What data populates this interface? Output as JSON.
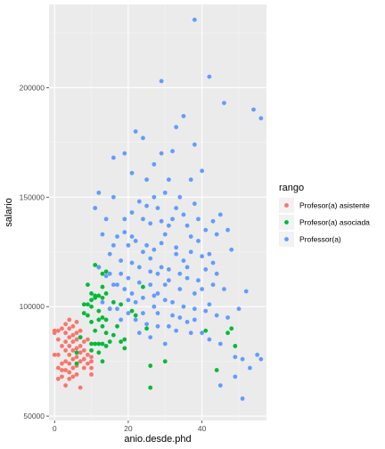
{
  "chart_data": {
    "type": "scatter",
    "title": "",
    "xlabel": "anio.desde.phd",
    "ylabel": "salario",
    "xlim": [
      -1.5,
      57.5
    ],
    "ylim": [
      48000,
      238000
    ],
    "x_ticks": [
      0,
      20,
      40
    ],
    "y_ticks": [
      50000,
      100000,
      150000,
      200000
    ],
    "y_tick_labels": [
      "50000",
      "100000",
      "150000",
      "200000"
    ],
    "grid": true,
    "legend": {
      "title": "rango",
      "position": "right"
    },
    "series": [
      {
        "name": "Profesor(a) asistente",
        "color": "#F8766D",
        "points": [
          [
            0,
            89000
          ],
          [
            0,
            88000
          ],
          [
            0,
            78000
          ],
          [
            1,
            89000
          ],
          [
            1,
            85000
          ],
          [
            1,
            78000
          ],
          [
            1,
            72000
          ],
          [
            1,
            67000
          ],
          [
            2,
            90000
          ],
          [
            2,
            82000
          ],
          [
            2,
            74000
          ],
          [
            2,
            71000
          ],
          [
            2,
            68000
          ],
          [
            3,
            92000
          ],
          [
            3,
            88000
          ],
          [
            3,
            84000
          ],
          [
            3,
            80000
          ],
          [
            3,
            75000
          ],
          [
            3,
            71000
          ],
          [
            3,
            64000
          ],
          [
            4,
            94000
          ],
          [
            4,
            90000
          ],
          [
            4,
            86000
          ],
          [
            4,
            82000
          ],
          [
            4,
            78000
          ],
          [
            4,
            74000
          ],
          [
            4,
            70000
          ],
          [
            4,
            67000
          ],
          [
            5,
            91000
          ],
          [
            5,
            87000
          ],
          [
            5,
            84000
          ],
          [
            5,
            80000
          ],
          [
            5,
            76000
          ],
          [
            5,
            72000
          ],
          [
            5,
            68000
          ],
          [
            6,
            93000
          ],
          [
            6,
            88000
          ],
          [
            6,
            85000
          ],
          [
            6,
            81000
          ],
          [
            6,
            77000
          ],
          [
            6,
            73000
          ],
          [
            6,
            69000
          ],
          [
            7,
            89000
          ],
          [
            7,
            86000
          ],
          [
            7,
            82000
          ],
          [
            7,
            79000
          ],
          [
            7,
            75000
          ],
          [
            7,
            63000
          ],
          [
            8,
            84000
          ],
          [
            8,
            80000
          ],
          [
            8,
            76000
          ],
          [
            8,
            72000
          ],
          [
            9,
            85000
          ],
          [
            9,
            78000
          ],
          [
            9,
            74000
          ],
          [
            10,
            77000
          ],
          [
            10,
            75000
          ],
          [
            10,
            72000
          ],
          [
            10,
            69000
          ]
        ]
      },
      {
        "name": "Profesor(a) asociada",
        "color": "#00BA38",
        "points": [
          [
            6,
            79000
          ],
          [
            6,
            74000
          ],
          [
            7,
            86000
          ],
          [
            8,
            101000
          ],
          [
            8,
            97000
          ],
          [
            9,
            110000
          ],
          [
            9,
            101000
          ],
          [
            9,
            96000
          ],
          [
            10,
            106000
          ],
          [
            10,
            103000
          ],
          [
            10,
            100000
          ],
          [
            10,
            93000
          ],
          [
            10,
            83000
          ],
          [
            10,
            80000
          ],
          [
            11,
            119000
          ],
          [
            11,
            105000
          ],
          [
            11,
            104000
          ],
          [
            11,
            89000
          ],
          [
            11,
            83000
          ],
          [
            12,
            118000
          ],
          [
            12,
            105000
          ],
          [
            12,
            98000
          ],
          [
            12,
            94000
          ],
          [
            12,
            83000
          ],
          [
            12,
            79000
          ],
          [
            13,
            115000
          ],
          [
            13,
            109000
          ],
          [
            13,
            104000
          ],
          [
            13,
            95000
          ],
          [
            13,
            91000
          ],
          [
            13,
            83000
          ],
          [
            13,
            75000
          ],
          [
            14,
            116000
          ],
          [
            14,
            106000
          ],
          [
            14,
            94000
          ],
          [
            14,
            88000
          ],
          [
            14,
            82000
          ],
          [
            15,
            99000
          ],
          [
            15,
            84000
          ],
          [
            16,
            102000
          ],
          [
            16,
            87000
          ],
          [
            17,
            91000
          ],
          [
            18,
            101000
          ],
          [
            18,
            84000
          ],
          [
            19,
            85000
          ],
          [
            19,
            81000
          ],
          [
            21,
            98000
          ],
          [
            22,
            96000
          ],
          [
            24,
            109000
          ],
          [
            25,
            90000
          ],
          [
            26,
            73000
          ],
          [
            26,
            63000
          ],
          [
            30,
            75000
          ],
          [
            41,
            89000
          ],
          [
            44,
            71000
          ],
          [
            47,
            88000
          ],
          [
            48,
            90000
          ],
          [
            49,
            82000
          ]
        ]
      },
      {
        "name": "Professor(a)",
        "color": "#619CFF",
        "points": [
          [
            38,
            231000
          ],
          [
            42,
            205000
          ],
          [
            29,
            203000
          ],
          [
            54,
            190000
          ],
          [
            35,
            187000
          ],
          [
            56,
            186000
          ],
          [
            46,
            193000
          ],
          [
            33,
            182000
          ],
          [
            22,
            180000
          ],
          [
            24,
            177000
          ],
          [
            38,
            174000
          ],
          [
            32,
            171000
          ],
          [
            16,
            168000
          ],
          [
            19,
            170000
          ],
          [
            29,
            170000
          ],
          [
            40,
            162000
          ],
          [
            27,
            165000
          ],
          [
            37,
            158000
          ],
          [
            25,
            158000
          ],
          [
            21,
            161000
          ],
          [
            31,
            158000
          ],
          [
            30,
            152000
          ],
          [
            34,
            150000
          ],
          [
            38,
            147000
          ],
          [
            45,
            142000
          ],
          [
            12,
            152000
          ],
          [
            16,
            150000
          ],
          [
            23,
            148000
          ],
          [
            28,
            145000
          ],
          [
            33,
            145000
          ],
          [
            39,
            140000
          ],
          [
            43,
            139000
          ],
          [
            47,
            135000
          ],
          [
            11,
            145000
          ],
          [
            14,
            140000
          ],
          [
            19,
            140000
          ],
          [
            21,
            143000
          ],
          [
            24,
            140000
          ],
          [
            26,
            138000
          ],
          [
            29,
            139000
          ],
          [
            31,
            137000
          ],
          [
            36,
            137000
          ],
          [
            41,
            135000
          ],
          [
            44,
            133000
          ],
          [
            48,
            126000
          ],
          [
            13,
            133000
          ],
          [
            17,
            132000
          ],
          [
            20,
            128000
          ],
          [
            22,
            130000
          ],
          [
            25,
            128000
          ],
          [
            27,
            126000
          ],
          [
            33,
            127000
          ],
          [
            37,
            125000
          ],
          [
            40,
            123000
          ],
          [
            42,
            124000
          ],
          [
            15,
            124000
          ],
          [
            18,
            121000
          ],
          [
            21,
            120000
          ],
          [
            23,
            118000
          ],
          [
            26,
            116000
          ],
          [
            28,
            115000
          ],
          [
            31,
            117000
          ],
          [
            34,
            115000
          ],
          [
            36,
            113000
          ],
          [
            39,
            112000
          ],
          [
            43,
            110000
          ],
          [
            46,
            108000
          ],
          [
            12,
            118000
          ],
          [
            14,
            114000
          ],
          [
            16,
            110000
          ],
          [
            19,
            108000
          ],
          [
            21,
            106000
          ],
          [
            24,
            104000
          ],
          [
            27,
            105000
          ],
          [
            30,
            103000
          ],
          [
            32,
            102000
          ],
          [
            35,
            100000
          ],
          [
            38,
            99000
          ],
          [
            41,
            98000
          ],
          [
            44,
            96000
          ],
          [
            47,
            95000
          ],
          [
            50,
            99000
          ],
          [
            52,
            107000
          ],
          [
            13,
            102000
          ],
          [
            17,
            99000
          ],
          [
            20,
            97000
          ],
          [
            22,
            94000
          ],
          [
            25,
            92000
          ],
          [
            28,
            91000
          ],
          [
            31,
            91000
          ],
          [
            33,
            89000
          ],
          [
            37,
            88000
          ],
          [
            40,
            88000
          ],
          [
            42,
            85000
          ],
          [
            45,
            83000
          ],
          [
            49,
            77000
          ],
          [
            51,
            76000
          ],
          [
            53,
            72000
          ],
          [
            55,
            78000
          ],
          [
            56,
            76000
          ],
          [
            49,
            68000
          ],
          [
            45,
            64000
          ],
          [
            51,
            58000
          ],
          [
            30,
            83000
          ],
          [
            26,
            86000
          ],
          [
            23,
            88000
          ],
          [
            18,
            94000
          ],
          [
            15,
            99000
          ],
          [
            29,
            129000
          ],
          [
            35,
            121000
          ],
          [
            38,
            106000
          ],
          [
            41,
            117000
          ],
          [
            26,
            110000
          ],
          [
            20,
            113000
          ],
          [
            24,
            125000
          ],
          [
            32,
            96000
          ],
          [
            36,
            93000
          ],
          [
            28,
            97000
          ],
          [
            22,
            102000
          ],
          [
            18,
            115000
          ],
          [
            43,
            120000
          ],
          [
            39,
            130000
          ],
          [
            27,
            150000
          ],
          [
            30,
            133000
          ],
          [
            34,
            108000
          ],
          [
            37,
            132000
          ],
          [
            16,
            128000
          ],
          [
            19,
            134000
          ],
          [
            25,
            146000
          ],
          [
            29,
            118000
          ],
          [
            33,
            124000
          ],
          [
            23,
            111000
          ],
          [
            40,
            108000
          ],
          [
            35,
            142000
          ],
          [
            31,
            112000
          ],
          [
            24,
            97000
          ],
          [
            21,
            132000
          ],
          [
            26,
            122000
          ],
          [
            28,
            106000
          ],
          [
            32,
            140000
          ],
          [
            36,
            118000
          ],
          [
            38,
            94000
          ],
          [
            42,
            101000
          ],
          [
            44,
            115000
          ],
          [
            17,
            110000
          ],
          [
            20,
            103000
          ],
          [
            30,
            110000
          ],
          [
            34,
            95000
          ],
          [
            27,
            100000
          ],
          [
            15,
            115000
          ]
        ]
      }
    ]
  }
}
